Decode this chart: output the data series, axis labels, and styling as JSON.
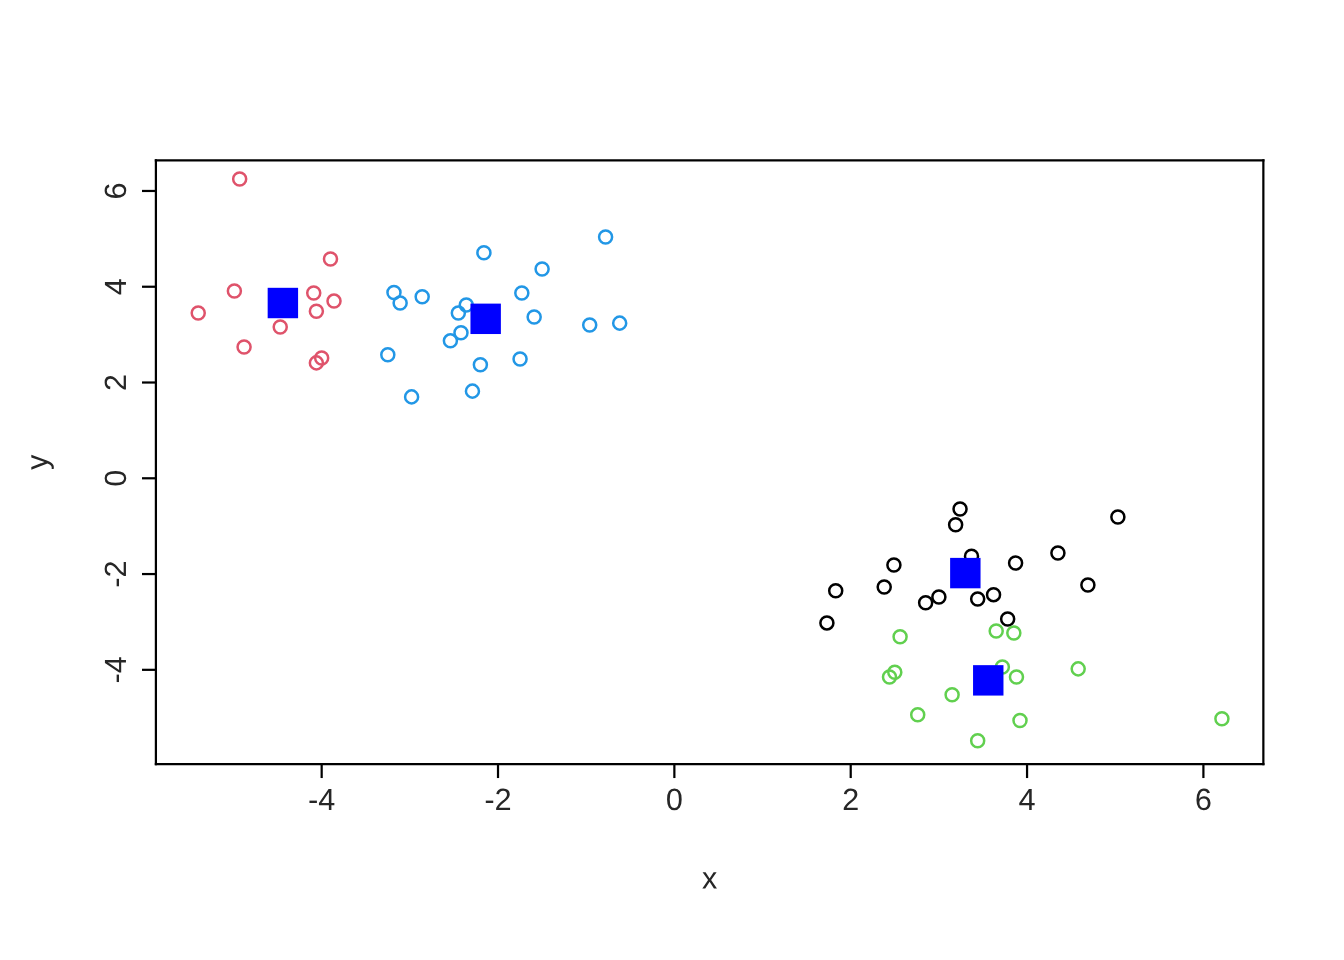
{
  "chart_data": {
    "type": "scatter",
    "xlabel": "x",
    "ylabel": "y",
    "xlim": [
      -5.88,
      6.68
    ],
    "ylim": [
      -5.97,
      6.64
    ],
    "xticks": [
      -4,
      -2,
      0,
      2,
      4,
      6
    ],
    "yticks": [
      -4,
      -2,
      0,
      2,
      4,
      6
    ],
    "grid": false,
    "series": [
      {
        "color": "#df536b",
        "marker": "circle",
        "x": [
          -4.93,
          -3.9,
          -4.99,
          -4.09,
          -3.86,
          -4.06,
          -5.4,
          -4.47,
          -4.88,
          -4.0,
          -4.06
        ],
        "values": [
          6.25,
          4.58,
          3.91,
          3.87,
          3.7,
          3.49,
          3.45,
          3.16,
          2.74,
          2.51,
          2.41
        ]
      },
      {
        "color": "#2297e6",
        "marker": "circle",
        "x": [
          -0.78,
          -2.16,
          -1.5,
          -3.18,
          -3.11,
          -2.86,
          -1.73,
          -2.36,
          -2.45,
          -1.59,
          -0.96,
          -0.62,
          -2.42,
          -2.54,
          -3.25,
          -1.75,
          -2.2,
          -2.29,
          -2.98
        ],
        "values": [
          5.04,
          4.71,
          4.37,
          3.88,
          3.66,
          3.79,
          3.87,
          3.62,
          3.45,
          3.37,
          3.2,
          3.24,
          3.04,
          2.87,
          2.58,
          2.49,
          2.37,
          1.82,
          1.7
        ]
      },
      {
        "color": "#000000",
        "marker": "circle",
        "x": [
          3.24,
          3.19,
          5.03,
          2.49,
          3.37,
          3.87,
          4.35,
          1.83,
          2.38,
          3.0,
          2.85,
          3.44,
          3.62,
          4.69,
          3.78,
          1.73
        ],
        "values": [
          -0.64,
          -0.97,
          -0.81,
          -1.81,
          -1.63,
          -1.77,
          -1.56,
          -2.35,
          -2.27,
          -2.48,
          -2.6,
          -2.52,
          -2.43,
          -2.23,
          -2.94,
          -3.02
        ]
      },
      {
        "color": "#61d04f",
        "marker": "circle",
        "x": [
          2.56,
          3.65,
          3.85,
          2.5,
          2.44,
          3.72,
          3.88,
          4.58,
          3.15,
          2.76,
          3.92,
          3.44,
          6.21
        ],
        "values": [
          -3.31,
          -3.19,
          -3.23,
          -4.05,
          -4.15,
          -3.94,
          -4.15,
          -3.98,
          -4.52,
          -4.94,
          -5.06,
          -5.48,
          -5.02
        ]
      },
      {
        "color": "#0000ff",
        "marker": "square",
        "x": [
          -4.44,
          -2.14,
          3.3,
          3.56
        ],
        "values": [
          3.66,
          3.33,
          -1.98,
          -4.22
        ]
      }
    ]
  }
}
